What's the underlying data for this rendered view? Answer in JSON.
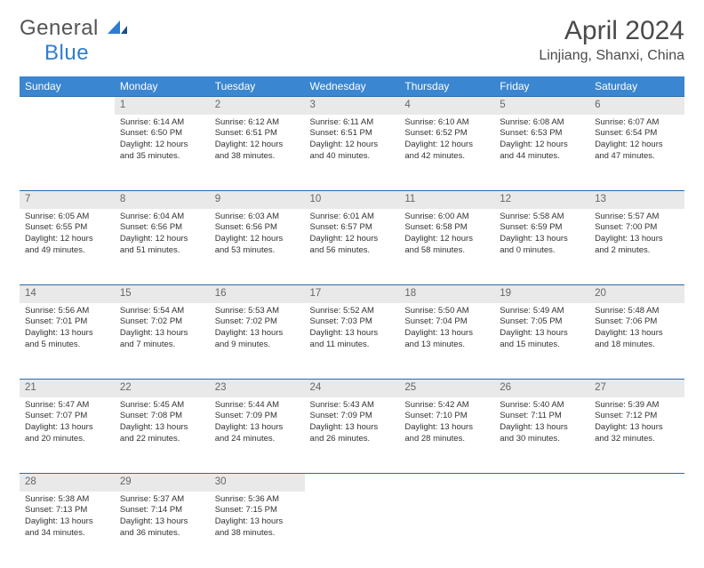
{
  "logo": {
    "text1": "General",
    "text2": "Blue"
  },
  "title": "April 2024",
  "location": "Linjiang, Shanxi, China",
  "colors": {
    "header_bg": "#3a86d0",
    "header_text": "#ffffff",
    "dayrow_bg": "#e9e9e9",
    "dayrow_border": "#2b6aa6",
    "daynum_color": "#666666",
    "body_text": "#333333",
    "title_color": "#4a4a4a",
    "logo_gray": "#555555",
    "logo_blue": "#2f7dd1"
  },
  "weekdays": [
    "Sunday",
    "Monday",
    "Tuesday",
    "Wednesday",
    "Thursday",
    "Friday",
    "Saturday"
  ],
  "weeks": [
    [
      null,
      {
        "d": "1",
        "sr": "Sunrise: 6:14 AM",
        "ss": "Sunset: 6:50 PM",
        "dl": "Daylight: 12 hours and 35 minutes."
      },
      {
        "d": "2",
        "sr": "Sunrise: 6:12 AM",
        "ss": "Sunset: 6:51 PM",
        "dl": "Daylight: 12 hours and 38 minutes."
      },
      {
        "d": "3",
        "sr": "Sunrise: 6:11 AM",
        "ss": "Sunset: 6:51 PM",
        "dl": "Daylight: 12 hours and 40 minutes."
      },
      {
        "d": "4",
        "sr": "Sunrise: 6:10 AM",
        "ss": "Sunset: 6:52 PM",
        "dl": "Daylight: 12 hours and 42 minutes."
      },
      {
        "d": "5",
        "sr": "Sunrise: 6:08 AM",
        "ss": "Sunset: 6:53 PM",
        "dl": "Daylight: 12 hours and 44 minutes."
      },
      {
        "d": "6",
        "sr": "Sunrise: 6:07 AM",
        "ss": "Sunset: 6:54 PM",
        "dl": "Daylight: 12 hours and 47 minutes."
      }
    ],
    [
      {
        "d": "7",
        "sr": "Sunrise: 6:05 AM",
        "ss": "Sunset: 6:55 PM",
        "dl": "Daylight: 12 hours and 49 minutes."
      },
      {
        "d": "8",
        "sr": "Sunrise: 6:04 AM",
        "ss": "Sunset: 6:56 PM",
        "dl": "Daylight: 12 hours and 51 minutes."
      },
      {
        "d": "9",
        "sr": "Sunrise: 6:03 AM",
        "ss": "Sunset: 6:56 PM",
        "dl": "Daylight: 12 hours and 53 minutes."
      },
      {
        "d": "10",
        "sr": "Sunrise: 6:01 AM",
        "ss": "Sunset: 6:57 PM",
        "dl": "Daylight: 12 hours and 56 minutes."
      },
      {
        "d": "11",
        "sr": "Sunrise: 6:00 AM",
        "ss": "Sunset: 6:58 PM",
        "dl": "Daylight: 12 hours and 58 minutes."
      },
      {
        "d": "12",
        "sr": "Sunrise: 5:58 AM",
        "ss": "Sunset: 6:59 PM",
        "dl": "Daylight: 13 hours and 0 minutes."
      },
      {
        "d": "13",
        "sr": "Sunrise: 5:57 AM",
        "ss": "Sunset: 7:00 PM",
        "dl": "Daylight: 13 hours and 2 minutes."
      }
    ],
    [
      {
        "d": "14",
        "sr": "Sunrise: 5:56 AM",
        "ss": "Sunset: 7:01 PM",
        "dl": "Daylight: 13 hours and 5 minutes."
      },
      {
        "d": "15",
        "sr": "Sunrise: 5:54 AM",
        "ss": "Sunset: 7:02 PM",
        "dl": "Daylight: 13 hours and 7 minutes."
      },
      {
        "d": "16",
        "sr": "Sunrise: 5:53 AM",
        "ss": "Sunset: 7:02 PM",
        "dl": "Daylight: 13 hours and 9 minutes."
      },
      {
        "d": "17",
        "sr": "Sunrise: 5:52 AM",
        "ss": "Sunset: 7:03 PM",
        "dl": "Daylight: 13 hours and 11 minutes."
      },
      {
        "d": "18",
        "sr": "Sunrise: 5:50 AM",
        "ss": "Sunset: 7:04 PM",
        "dl": "Daylight: 13 hours and 13 minutes."
      },
      {
        "d": "19",
        "sr": "Sunrise: 5:49 AM",
        "ss": "Sunset: 7:05 PM",
        "dl": "Daylight: 13 hours and 15 minutes."
      },
      {
        "d": "20",
        "sr": "Sunrise: 5:48 AM",
        "ss": "Sunset: 7:06 PM",
        "dl": "Daylight: 13 hours and 18 minutes."
      }
    ],
    [
      {
        "d": "21",
        "sr": "Sunrise: 5:47 AM",
        "ss": "Sunset: 7:07 PM",
        "dl": "Daylight: 13 hours and 20 minutes."
      },
      {
        "d": "22",
        "sr": "Sunrise: 5:45 AM",
        "ss": "Sunset: 7:08 PM",
        "dl": "Daylight: 13 hours and 22 minutes."
      },
      {
        "d": "23",
        "sr": "Sunrise: 5:44 AM",
        "ss": "Sunset: 7:09 PM",
        "dl": "Daylight: 13 hours and 24 minutes."
      },
      {
        "d": "24",
        "sr": "Sunrise: 5:43 AM",
        "ss": "Sunset: 7:09 PM",
        "dl": "Daylight: 13 hours and 26 minutes."
      },
      {
        "d": "25",
        "sr": "Sunrise: 5:42 AM",
        "ss": "Sunset: 7:10 PM",
        "dl": "Daylight: 13 hours and 28 minutes."
      },
      {
        "d": "26",
        "sr": "Sunrise: 5:40 AM",
        "ss": "Sunset: 7:11 PM",
        "dl": "Daylight: 13 hours and 30 minutes."
      },
      {
        "d": "27",
        "sr": "Sunrise: 5:39 AM",
        "ss": "Sunset: 7:12 PM",
        "dl": "Daylight: 13 hours and 32 minutes."
      }
    ],
    [
      {
        "d": "28",
        "sr": "Sunrise: 5:38 AM",
        "ss": "Sunset: 7:13 PM",
        "dl": "Daylight: 13 hours and 34 minutes."
      },
      {
        "d": "29",
        "sr": "Sunrise: 5:37 AM",
        "ss": "Sunset: 7:14 PM",
        "dl": "Daylight: 13 hours and 36 minutes."
      },
      {
        "d": "30",
        "sr": "Sunrise: 5:36 AM",
        "ss": "Sunset: 7:15 PM",
        "dl": "Daylight: 13 hours and 38 minutes."
      },
      null,
      null,
      null,
      null
    ]
  ]
}
